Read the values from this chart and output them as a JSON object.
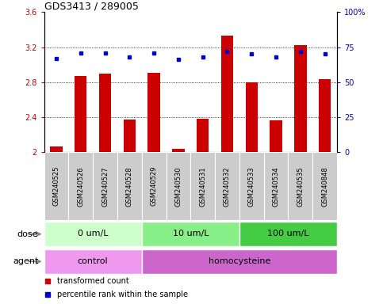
{
  "title": "GDS3413 / 289005",
  "samples": [
    "GSM240525",
    "GSM240526",
    "GSM240527",
    "GSM240528",
    "GSM240529",
    "GSM240530",
    "GSM240531",
    "GSM240532",
    "GSM240533",
    "GSM240534",
    "GSM240535",
    "GSM240848"
  ],
  "transformed_count": [
    2.06,
    2.87,
    2.9,
    2.37,
    2.91,
    2.04,
    2.38,
    3.33,
    2.8,
    2.36,
    3.22,
    2.83
  ],
  "percentile_rank": [
    67,
    71,
    71,
    68,
    71,
    66,
    68,
    72,
    70,
    68,
    72,
    70
  ],
  "ylim_left": [
    2.0,
    3.6
  ],
  "ylim_right": [
    0,
    100
  ],
  "yticks_left": [
    2.0,
    2.4,
    2.8,
    3.2,
    3.6
  ],
  "ytick_labels_left": [
    "2",
    "2.4",
    "2.8",
    "3.2",
    "3.6"
  ],
  "yticks_right": [
    0,
    25,
    50,
    75,
    100
  ],
  "ytick_labels_right": [
    "0",
    "25",
    "50",
    "75",
    "100%"
  ],
  "bar_color": "#cc0000",
  "dot_color": "#0000cc",
  "bar_bottom": 2.0,
  "dose_groups": [
    {
      "label": "0 um/L",
      "start": 0,
      "end": 4,
      "color": "#ccffcc"
    },
    {
      "label": "10 um/L",
      "start": 4,
      "end": 8,
      "color": "#88ee88"
    },
    {
      "label": "100 um/L",
      "start": 8,
      "end": 12,
      "color": "#44cc44"
    }
  ],
  "agent_groups": [
    {
      "label": "control",
      "start": 0,
      "end": 4,
      "color": "#ee99ee"
    },
    {
      "label": "homocysteine",
      "start": 4,
      "end": 12,
      "color": "#cc66cc"
    }
  ],
  "dose_label": "dose",
  "agent_label": "agent",
  "legend_items": [
    {
      "label": "transformed count",
      "color": "#cc0000"
    },
    {
      "label": "percentile rank within the sample",
      "color": "#0000cc"
    }
  ],
  "sample_bg": "#cccccc",
  "plot_bg": "#ffffff",
  "title_fontsize": 9,
  "tick_fontsize": 7,
  "label_fontsize": 8,
  "sample_fontsize": 6
}
